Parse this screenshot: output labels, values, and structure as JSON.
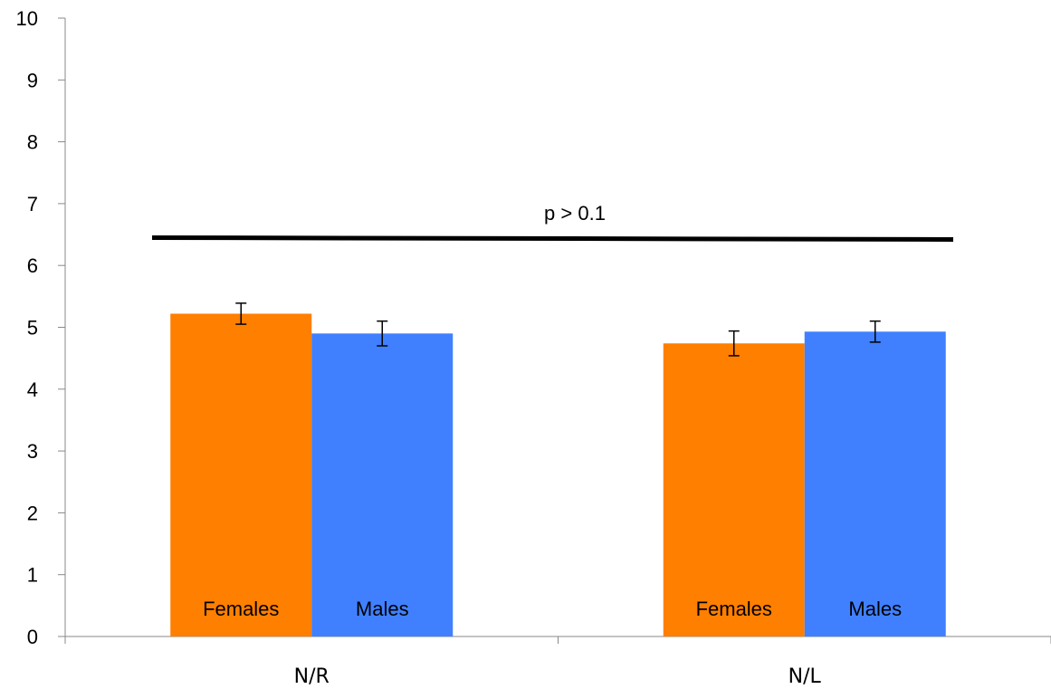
{
  "chart_data": {
    "type": "bar",
    "title": "",
    "xlabel": "",
    "ylabel": "",
    "ylim": [
      0,
      10
    ],
    "yticks": [
      0,
      1,
      2,
      3,
      4,
      5,
      6,
      7,
      8,
      9,
      10
    ],
    "categories": [
      "N/R",
      "N/L"
    ],
    "series": [
      {
        "name": "Females",
        "color": "#FF7F00",
        "values": [
          5.22,
          4.74
        ],
        "error": [
          0.17,
          0.2
        ],
        "bar_labels": [
          "Females",
          "Females"
        ]
      },
      {
        "name": "Males",
        "color": "#4080FF",
        "values": [
          4.9,
          4.93
        ],
        "error": [
          0.2,
          0.17
        ],
        "bar_labels": [
          "Males",
          "Males"
        ]
      }
    ],
    "annotation": {
      "text": "p > 0.1",
      "line_y_start": 6.45,
      "line_y_end": 6.42
    },
    "grid": false,
    "legend": "none"
  }
}
